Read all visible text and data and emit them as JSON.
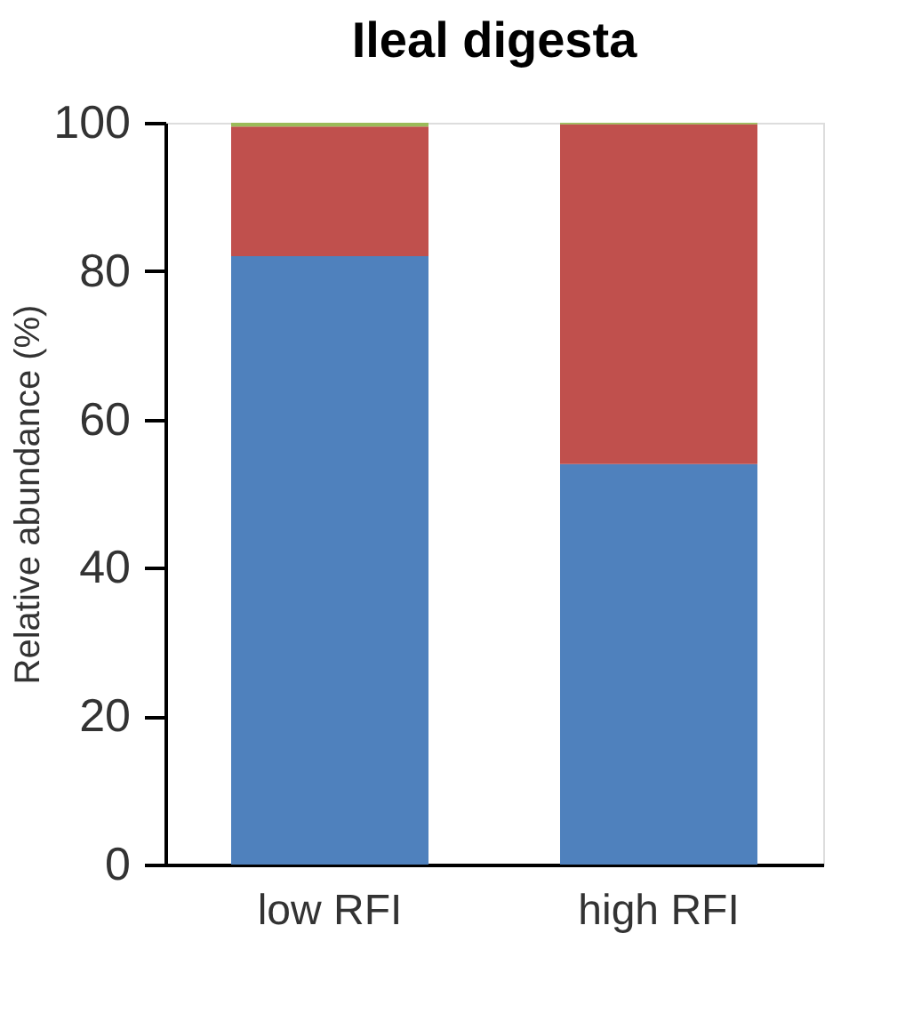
{
  "chart_data": {
    "type": "bar",
    "title": "Ileal digesta",
    "ylabel": "Relative abundance (%)",
    "categories": [
      "low RFI",
      "high RFI"
    ],
    "stacked": true,
    "series": [
      {
        "color": "#4f81bd",
        "values": [
          82,
          54
        ]
      },
      {
        "color": "#c0504d",
        "values": [
          17.5,
          45.8
        ]
      },
      {
        "color": "#9bbb59",
        "values": [
          0.5,
          0.2
        ]
      }
    ],
    "ylim": [
      0,
      100
    ],
    "yticks": [
      0,
      20,
      40,
      60,
      80,
      100
    ],
    "grid": false,
    "legend": false
  }
}
